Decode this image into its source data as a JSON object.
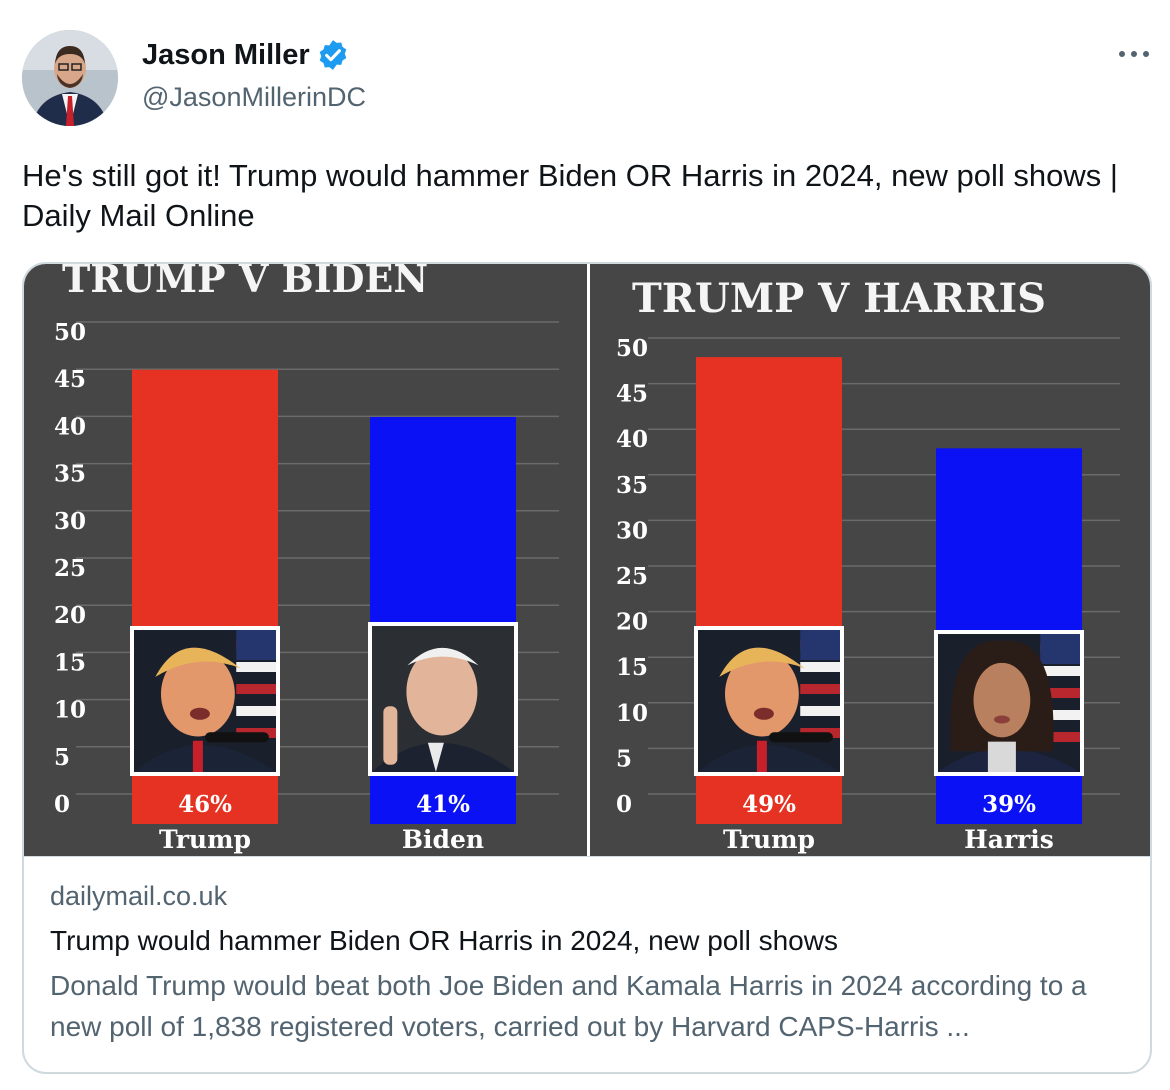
{
  "author": {
    "name": "Jason Miller",
    "handle": "@JasonMillerinDC",
    "verified_color": "#1d9bf0"
  },
  "tweet": {
    "text": "He's still got it! Trump would hammer Biden OR Harris in 2024, new poll shows | Daily Mail Online"
  },
  "card": {
    "domain": "dailymail.co.uk",
    "title": "Trump would hammer Biden OR Harris in 2024, new poll shows",
    "description": "Donald Trump would beat both Joe Biden and Kamala Harris in 2024 according to a new poll of 1,838 registered voters, carried out by Harvard CAPS-Harris ..."
  },
  "chart_data": [
    {
      "type": "bar",
      "title": "TRUMP V BIDEN",
      "categories": [
        "Trump",
        "Biden"
      ],
      "values": [
        46,
        41
      ],
      "value_labels": [
        "46%",
        "41%"
      ],
      "colors": [
        "#e53222",
        "#0a12f5"
      ],
      "yticks": [
        "0",
        "5",
        "10",
        "15",
        "20",
        "25",
        "30",
        "35",
        "40",
        "45",
        "50"
      ],
      "ylim": [
        0,
        50
      ],
      "grid": true,
      "background": "#464646"
    },
    {
      "type": "bar",
      "title": "TRUMP V HARRIS",
      "categories": [
        "Trump",
        "Harris"
      ],
      "values": [
        49,
        39
      ],
      "value_labels": [
        "49%",
        "39%"
      ],
      "colors": [
        "#e53222",
        "#0a12f5"
      ],
      "yticks": [
        "0",
        "5",
        "10",
        "15",
        "20",
        "25",
        "30",
        "35",
        "40",
        "45",
        "50"
      ],
      "ylim": [
        0,
        50
      ],
      "grid": true,
      "background": "#464646"
    }
  ]
}
